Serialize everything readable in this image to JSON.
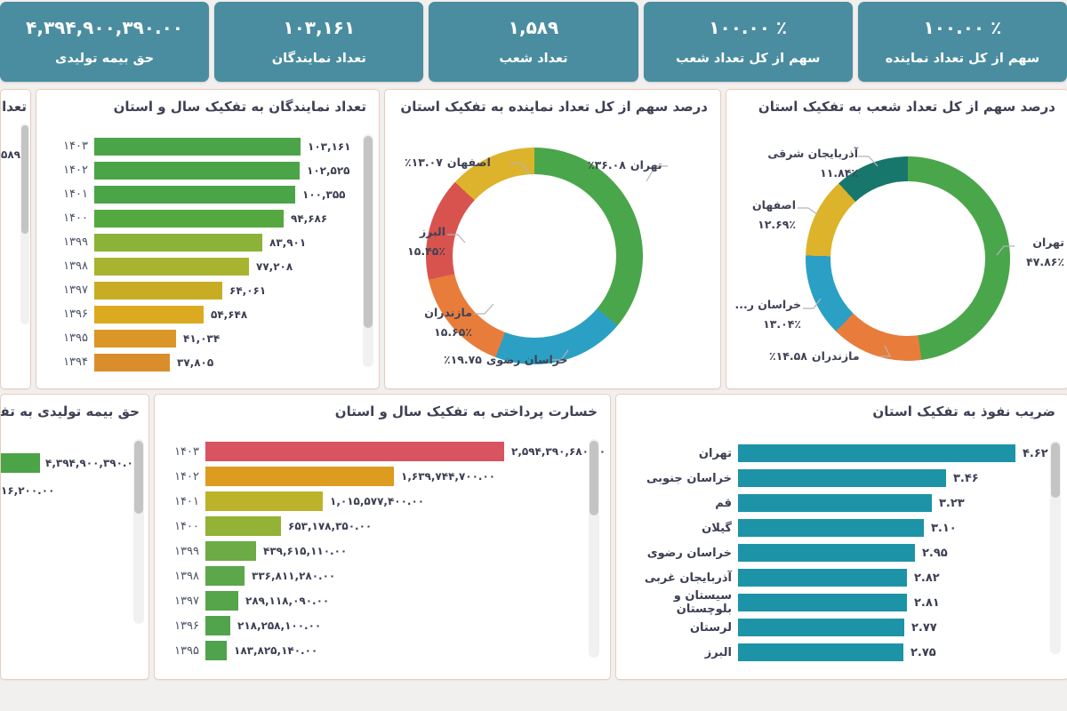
{
  "kpi_color": "#4a8da0",
  "kpis": [
    {
      "label": "سهم از کل تعداد نماینده",
      "value": "۱۰۰.۰۰ ٪"
    },
    {
      "label": "سهم از کل تعداد شعب",
      "value": "۱۰۰.۰۰ ٪"
    },
    {
      "label": "تعداد شعب",
      "value": "۱,۵۸۹"
    },
    {
      "label": "تعداد نمایندگان",
      "value": "۱۰۳,۱۶۱"
    },
    {
      "label": "حق بیمه تولیدی",
      "value": "۴,۳۹۴,۹۰۰,۳۹۰.۰۰"
    }
  ],
  "chart_data": [
    {
      "id": "branches-by-year-clipped",
      "type": "bar",
      "title_fragment": "تعداد",
      "visible_value_fragment": "۵۸۹"
    },
    {
      "id": "representatives-by-year",
      "type": "bar",
      "title": "تعداد نمایندگان به تفکیک سال و استان",
      "categories": [
        "۱۴۰۳",
        "۱۴۰۲",
        "۱۴۰۱",
        "۱۴۰۰",
        "۱۳۹۹",
        "۱۳۹۸",
        "۱۳۹۷",
        "۱۳۹۶",
        "۱۳۹۵",
        "۱۳۹۴"
      ],
      "values": [
        103161,
        102525,
        100355,
        94686,
        83901,
        77208,
        64061,
        54648,
        41034,
        37805
      ],
      "value_labels": [
        "۱۰۳,۱۶۱",
        "۱۰۲,۵۲۵",
        "۱۰۰,۳۵۵",
        "۹۴,۶۸۶",
        "۸۳,۹۰۱",
        "۷۷,۲۰۸",
        "۶۴,۰۶۱",
        "۵۴,۶۴۸",
        "۴۱,۰۳۴",
        "۳۷,۸۰۵"
      ],
      "bar_colors": [
        "#4ba447",
        "#4ba447",
        "#4ba447",
        "#55a83f",
        "#8cb238",
        "#a8b32f",
        "#c8ad24",
        "#dcaa20",
        "#dc9527",
        "#da8e2b"
      ]
    },
    {
      "id": "representative-share-by-province",
      "type": "pie",
      "title": "درصد سهم از کل تعداد نماینده به تفکیک استان",
      "slices": [
        {
          "label": "تهران",
          "value": 36.08,
          "pct_display": "٪۳۶.۰۸",
          "color": "#4aa64b"
        },
        {
          "label": "خراسان رضوی",
          "value": 19.75,
          "pct_display": "٪۱۹.۷۵",
          "color": "#2ba0c4"
        },
        {
          "label": "مازندران",
          "value": 15.65,
          "pct_display": "۱۵.۶۵٪",
          "color": "#e87c3b"
        },
        {
          "label": "البرز",
          "value": 15.45,
          "pct_display": "۱۵.۴۵٪",
          "color": "#d9534e"
        },
        {
          "label": "اصفهان",
          "value": 13.07,
          "pct_display": "٪۱۳.۰۷",
          "color": "#ddb32b"
        }
      ]
    },
    {
      "id": "branch-share-by-province",
      "type": "pie",
      "title": "درصد سهم از کل تعداد شعب به تفکیک استان",
      "slices": [
        {
          "label": "تهران",
          "value": 47.86,
          "pct_display": "۴۷.۸۶٪",
          "color": "#4aa64b"
        },
        {
          "label": "مازندران",
          "value": 14.58,
          "pct_display": "٪۱۴.۵۸",
          "color": "#e87c3b"
        },
        {
          "label": "خراسان ر...",
          "value": 13.04,
          "pct_display": "۱۳.۰۴٪",
          "color": "#2ba0c4"
        },
        {
          "label": "اصفهان",
          "value": 12.69,
          "pct_display": "۱۲.۶۹٪",
          "color": "#ddb32b"
        },
        {
          "label": "آذربایجان شرقی",
          "value": 11.84,
          "pct_display": "۱۱.۸۴٪",
          "color": "#17776c"
        }
      ]
    },
    {
      "id": "premium-by-year-clipped",
      "type": "bar",
      "title_fragment": "حق بیمه تولیدی به تفکیک سال",
      "visible_bars": [
        {
          "value_label": "۴,۳۹۴,۹۰۰,۳۹۰.۰۰",
          "color": "#4ba447"
        },
        {
          "value_label": "۱۶,۲۰۰.۰۰"
        }
      ]
    },
    {
      "id": "claims-paid-by-year",
      "type": "bar",
      "title": "خسارت پرداختی به تفکیک سال و استان",
      "categories": [
        "۱۴۰۳",
        "۱۴۰۲",
        "۱۴۰۱",
        "۱۴۰۰",
        "۱۳۹۹",
        "۱۳۹۸",
        "۱۳۹۷",
        "۱۳۹۶",
        "۱۳۹۵"
      ],
      "values": [
        2594390680,
        1639744700,
        1015577400,
        653178350,
        439615110,
        336811280,
        289118090,
        218258100,
        183825140
      ],
      "value_labels": [
        "۲,۵۹۴,۳۹۰,۶۸۰.۰۰",
        "۱,۶۳۹,۷۴۴,۷۰۰.۰۰",
        "۱,۰۱۵,۵۷۷,۴۰۰.۰۰",
        "۶۵۳,۱۷۸,۳۵۰.۰۰",
        "۴۳۹,۶۱۵,۱۱۰.۰۰",
        "۳۳۶,۸۱۱,۲۸۰.۰۰",
        "۲۸۹,۱۱۸,۰۹۰.۰۰",
        "۲۱۸,۲۵۸,۱۰۰.۰۰",
        "۱۸۳,۸۲۵,۱۴۰.۰۰"
      ],
      "bar_colors": [
        "#d85460",
        "#dd9b20",
        "#bcb32a",
        "#93b236",
        "#6cab45",
        "#5ba74a",
        "#57a54b",
        "#52a44c",
        "#4fa34d"
      ]
    },
    {
      "id": "penetration-rate-by-province",
      "type": "bar",
      "title": "ضریب نفوذ به تفکیک استان",
      "categories": [
        "تهران",
        "خراسان جنوبی",
        "قم",
        "گیلان",
        "خراسان رضوی",
        "آذربایجان غربی",
        "سیستان و بلوچستان",
        "لرستان",
        "البرز"
      ],
      "values": [
        4.62,
        3.46,
        3.23,
        3.1,
        2.95,
        2.82,
        2.81,
        2.77,
        2.75
      ],
      "value_labels": [
        "۴.۶۲",
        "۳.۴۶",
        "۳.۲۳",
        "۳.۱۰",
        "۲.۹۵",
        "۲.۸۲",
        "۲.۸۱",
        "۲.۷۷",
        "۲.۷۵"
      ],
      "bar_color": "#1d93a8"
    }
  ]
}
